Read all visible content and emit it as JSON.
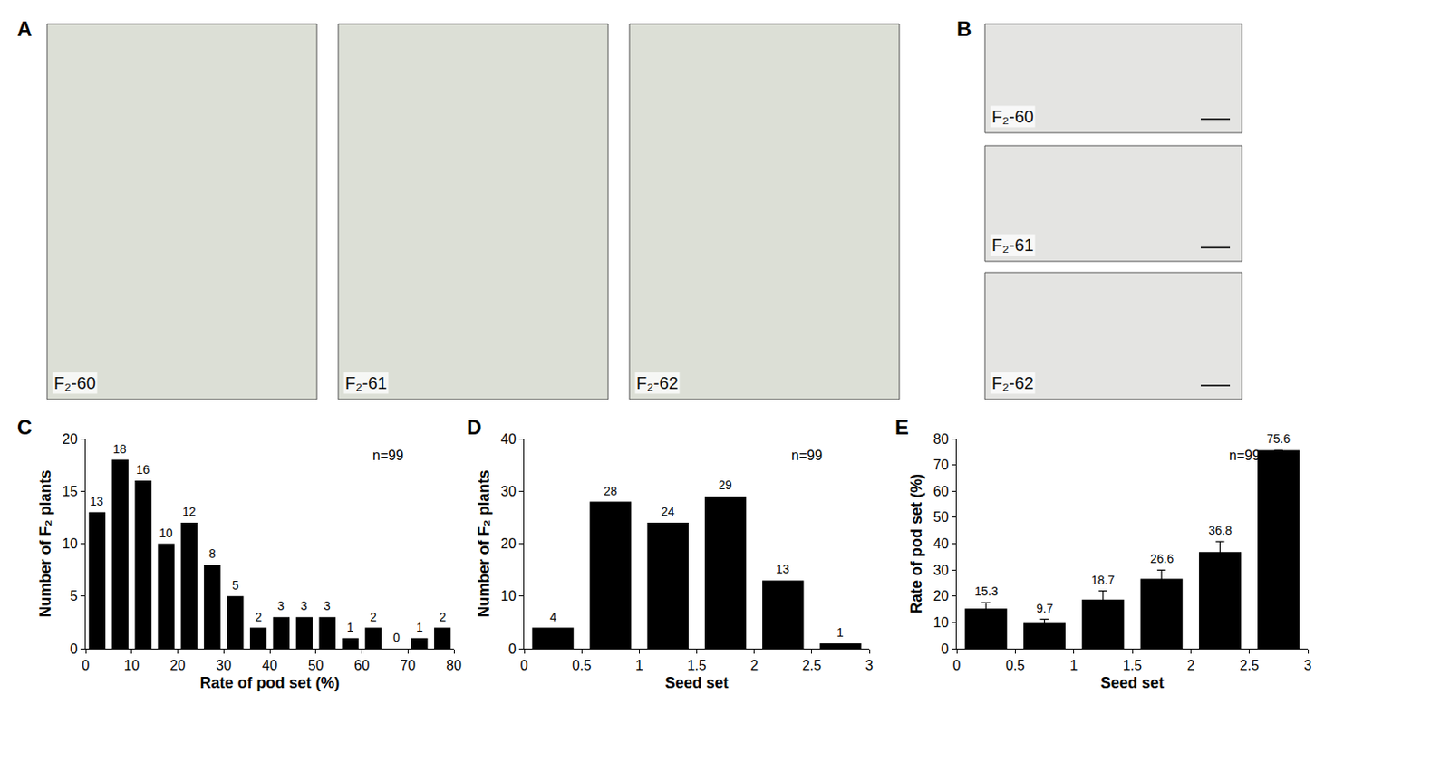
{
  "panels": [
    {
      "label": "A",
      "photo_labels": [
        "F₂-60",
        "F₂-61",
        "F₂-62"
      ]
    },
    {
      "label": "B",
      "photo_labels": [
        "F₂-60",
        "F₂-61",
        "F₂-62"
      ]
    }
  ],
  "chart_data": [
    {
      "panel": "C",
      "type": "histogram",
      "x_label": "Rate of pod set (%)",
      "y_label": "Number of F₂ plants",
      "annotation": "n=99",
      "bins": [
        0,
        5,
        10,
        15,
        20,
        25,
        30,
        35,
        40,
        45,
        50,
        55,
        60,
        65,
        70,
        75,
        80
      ],
      "values": [
        13,
        18,
        16,
        10,
        12,
        8,
        5,
        2,
        3,
        3,
        3,
        1,
        2,
        0,
        1,
        2
      ],
      "color": "#000000",
      "xlim": [
        0,
        80
      ],
      "xticks": [
        0,
        10,
        20,
        30,
        40,
        50,
        60,
        70,
        80
      ],
      "ylim": [
        0,
        20
      ],
      "yticks": [
        0,
        5,
        10,
        15,
        20
      ],
      "data_labels": true,
      "grid": false
    },
    {
      "panel": "D",
      "type": "histogram",
      "x_label": "Seed set",
      "y_label": "Number of F₂ plants",
      "annotation": "n=99",
      "bins": [
        0,
        0.5,
        1,
        1.5,
        2,
        2.5,
        3
      ],
      "values": [
        4,
        28,
        24,
        29,
        13,
        1
      ],
      "color": "#000000",
      "xlim": [
        0,
        3
      ],
      "xticks": [
        0,
        0.5,
        1,
        1.5,
        2,
        2.5,
        3
      ],
      "ylim": [
        0,
        40
      ],
      "yticks": [
        0,
        10,
        20,
        30,
        40
      ],
      "data_labels": true,
      "grid": false
    },
    {
      "panel": "E",
      "type": "bar",
      "x_label": "Seed set",
      "y_label": "Rate of pod set (%)",
      "annotation": "n=99",
      "x": [
        0.25,
        0.75,
        1.25,
        1.75,
        2.25,
        2.75
      ],
      "values": [
        15.3,
        9.7,
        18.7,
        26.6,
        36.8,
        75.6
      ],
      "errors": [
        2.2,
        1.5,
        3.3,
        3.3,
        4.0,
        null
      ],
      "color": "#000000",
      "xlim": [
        0,
        3
      ],
      "xticks": [
        0,
        0.5,
        1,
        1.5,
        2,
        2.5,
        3
      ],
      "ylim": [
        0,
        80
      ],
      "yticks": [
        0,
        10,
        20,
        30,
        40,
        50,
        60,
        70,
        80
      ],
      "data_labels": true,
      "grid": false
    }
  ]
}
